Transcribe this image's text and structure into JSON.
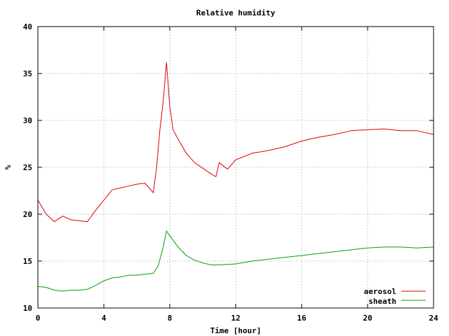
{
  "chart_data": {
    "type": "line",
    "title": "Relative humidity",
    "xlabel": "Time [hour]",
    "ylabel": "%",
    "xlim": [
      0,
      24
    ],
    "ylim": [
      10,
      40
    ],
    "xticks": [
      0,
      4,
      8,
      12,
      16,
      20,
      24
    ],
    "yticks": [
      10,
      15,
      20,
      25,
      30,
      35,
      40
    ],
    "grid": true,
    "legend_position": "bottom-right",
    "series": [
      {
        "name": "aerosol",
        "color": "#dd0000",
        "points": [
          [
            0,
            21.5
          ],
          [
            0.5,
            20.0
          ],
          [
            1,
            19.2
          ],
          [
            1.5,
            19.8
          ],
          [
            2,
            19.4
          ],
          [
            2.5,
            19.3
          ],
          [
            3,
            19.2
          ],
          [
            3.5,
            20.4
          ],
          [
            4,
            21.5
          ],
          [
            4.5,
            22.6
          ],
          [
            5,
            22.8
          ],
          [
            5.5,
            23.0
          ],
          [
            6,
            23.2
          ],
          [
            6.5,
            23.3
          ],
          [
            7,
            22.3
          ],
          [
            7.2,
            25.0
          ],
          [
            7.4,
            29.0
          ],
          [
            7.6,
            32.0
          ],
          [
            7.8,
            36.2
          ],
          [
            8.0,
            31.5
          ],
          [
            8.2,
            29.0
          ],
          [
            8.5,
            28.0
          ],
          [
            9,
            26.5
          ],
          [
            9.5,
            25.5
          ],
          [
            10,
            24.9
          ],
          [
            10.5,
            24.3
          ],
          [
            10.8,
            24.0
          ],
          [
            11,
            25.5
          ],
          [
            11.5,
            24.8
          ],
          [
            12,
            25.8
          ],
          [
            13,
            26.5
          ],
          [
            14,
            26.8
          ],
          [
            15,
            27.2
          ],
          [
            16,
            27.8
          ],
          [
            17,
            28.2
          ],
          [
            18,
            28.5
          ],
          [
            19,
            28.9
          ],
          [
            20,
            29.0
          ],
          [
            21,
            29.1
          ],
          [
            22,
            28.9
          ],
          [
            23,
            28.9
          ],
          [
            24,
            28.5
          ]
        ]
      },
      {
        "name": "sheath",
        "color": "#00a000",
        "points": [
          [
            0,
            12.3
          ],
          [
            0.5,
            12.2
          ],
          [
            1,
            11.9
          ],
          [
            1.5,
            11.8
          ],
          [
            2,
            11.9
          ],
          [
            2.5,
            11.9
          ],
          [
            3,
            12.0
          ],
          [
            3.5,
            12.4
          ],
          [
            4,
            12.9
          ],
          [
            4.5,
            13.2
          ],
          [
            5,
            13.3
          ],
          [
            5.5,
            13.5
          ],
          [
            6,
            13.5
          ],
          [
            6.5,
            13.6
          ],
          [
            7,
            13.7
          ],
          [
            7.3,
            14.5
          ],
          [
            7.6,
            16.5
          ],
          [
            7.8,
            18.2
          ],
          [
            8.0,
            17.7
          ],
          [
            8.5,
            16.5
          ],
          [
            9,
            15.6
          ],
          [
            9.5,
            15.1
          ],
          [
            10,
            14.8
          ],
          [
            10.5,
            14.6
          ],
          [
            11,
            14.6
          ],
          [
            12,
            14.7
          ],
          [
            13,
            15.0
          ],
          [
            14,
            15.2
          ],
          [
            15,
            15.4
          ],
          [
            16,
            15.6
          ],
          [
            17,
            15.8
          ],
          [
            18,
            16.0
          ],
          [
            19,
            16.2
          ],
          [
            20,
            16.4
          ],
          [
            21,
            16.5
          ],
          [
            22,
            16.5
          ],
          [
            23,
            16.4
          ],
          [
            24,
            16.5
          ]
        ]
      }
    ]
  }
}
